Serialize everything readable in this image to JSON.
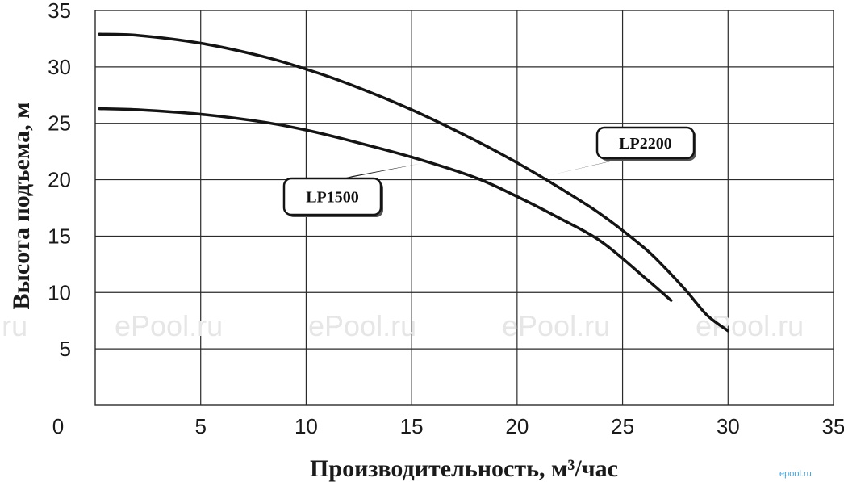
{
  "chart_data": {
    "type": "line",
    "title": "",
    "xlabel": "Производительность, м³/час",
    "ylabel": "Высота подъема, м",
    "xlim": [
      0,
      35
    ],
    "ylim": [
      0,
      35
    ],
    "xticks": [
      5,
      10,
      15,
      20,
      25,
      30,
      35
    ],
    "yticks": [
      5,
      10,
      15,
      20,
      25,
      30,
      35
    ],
    "origin_label": "0",
    "grid": true,
    "series": [
      {
        "name": "LP2200",
        "x": [
          0.2,
          2,
          5,
          8,
          10,
          12,
          15,
          18,
          20,
          22,
          24,
          26,
          27,
          28,
          29,
          30
        ],
        "y": [
          32.9,
          32.8,
          32.1,
          30.9,
          29.8,
          28.5,
          26.2,
          23.5,
          21.5,
          19.3,
          16.9,
          14.0,
          12.2,
          10.2,
          8.0,
          6.6
        ]
      },
      {
        "name": "LP1500",
        "x": [
          0.2,
          2,
          5,
          8,
          10,
          12,
          15,
          18,
          20,
          22,
          24,
          26,
          27.3
        ],
        "y": [
          26.3,
          26.2,
          25.8,
          25.1,
          24.4,
          23.5,
          22.0,
          20.2,
          18.5,
          16.6,
          14.5,
          11.4,
          9.3
        ]
      }
    ],
    "annotations": [
      {
        "text": "LP2200",
        "series": "LP2200",
        "x": 21.5,
        "y": 20.3
      },
      {
        "text": "LP1500",
        "series": "LP1500",
        "x": 15.5,
        "y": 21.5
      }
    ],
    "watermark": "ePool.ru",
    "corner_mark": "epool.ru"
  }
}
